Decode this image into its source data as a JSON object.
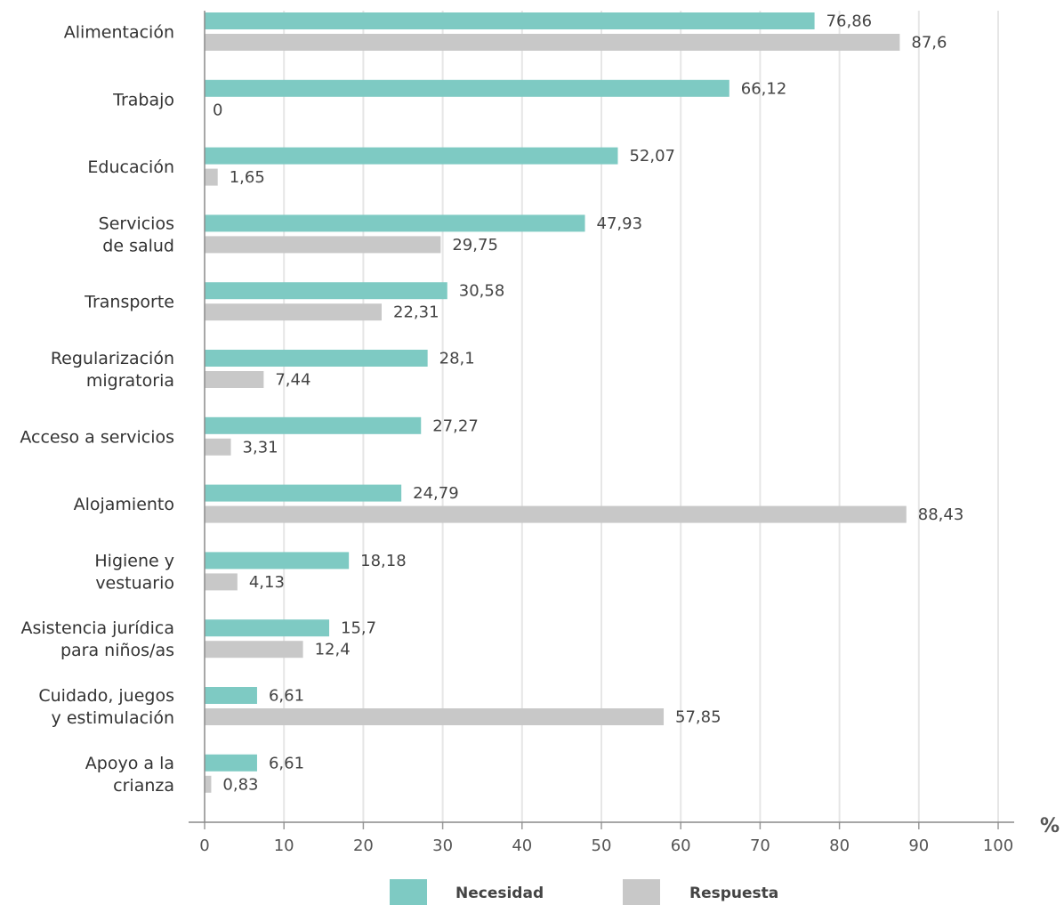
{
  "chart_data": {
    "type": "bar",
    "orientation": "horizontal",
    "categories": [
      [
        "Alimentación"
      ],
      [
        "Trabajo"
      ],
      [
        "Educación"
      ],
      [
        "Servicios",
        "de salud"
      ],
      [
        "Transporte"
      ],
      [
        "Regularización",
        "migratoria"
      ],
      [
        "Acceso a servicios"
      ],
      [
        "Alojamiento"
      ],
      [
        "Higiene y",
        "vestuario"
      ],
      [
        "Asistencia jurídica",
        "para niños/as"
      ],
      [
        "Cuidado, juegos",
        "y estimulación"
      ],
      [
        "Apoyo a la",
        "crianza"
      ]
    ],
    "series": [
      {
        "name": "Necesidad",
        "color": "#7ecac3",
        "values": [
          76.86,
          66.12,
          52.07,
          47.93,
          30.58,
          28.1,
          27.27,
          24.79,
          18.18,
          15.7,
          6.61,
          6.61
        ],
        "labels": [
          "76,86",
          "66,12",
          "52,07",
          "47,93",
          "30,58",
          "28,1",
          "27,27",
          "24,79",
          "18,18",
          "15,7",
          "6,61",
          "6,61"
        ]
      },
      {
        "name": "Respuesta",
        "color": "#c8c8c8",
        "values": [
          87.6,
          0,
          1.65,
          29.75,
          22.31,
          7.44,
          3.31,
          88.43,
          4.13,
          12.4,
          57.85,
          0.83
        ],
        "labels": [
          "87,6",
          "0",
          "1,65",
          "29,75",
          "22,31",
          "7,44",
          "3,31",
          "88,43",
          "4,13",
          "12,4",
          "57,85",
          "0,83"
        ]
      }
    ],
    "xlim": [
      0,
      100
    ],
    "xticks": [
      "0",
      "10",
      "20",
      "30",
      "40",
      "50",
      "60",
      "70",
      "80",
      "90",
      "100"
    ],
    "unit": "%",
    "grid": true,
    "legend_position": "bottom"
  }
}
